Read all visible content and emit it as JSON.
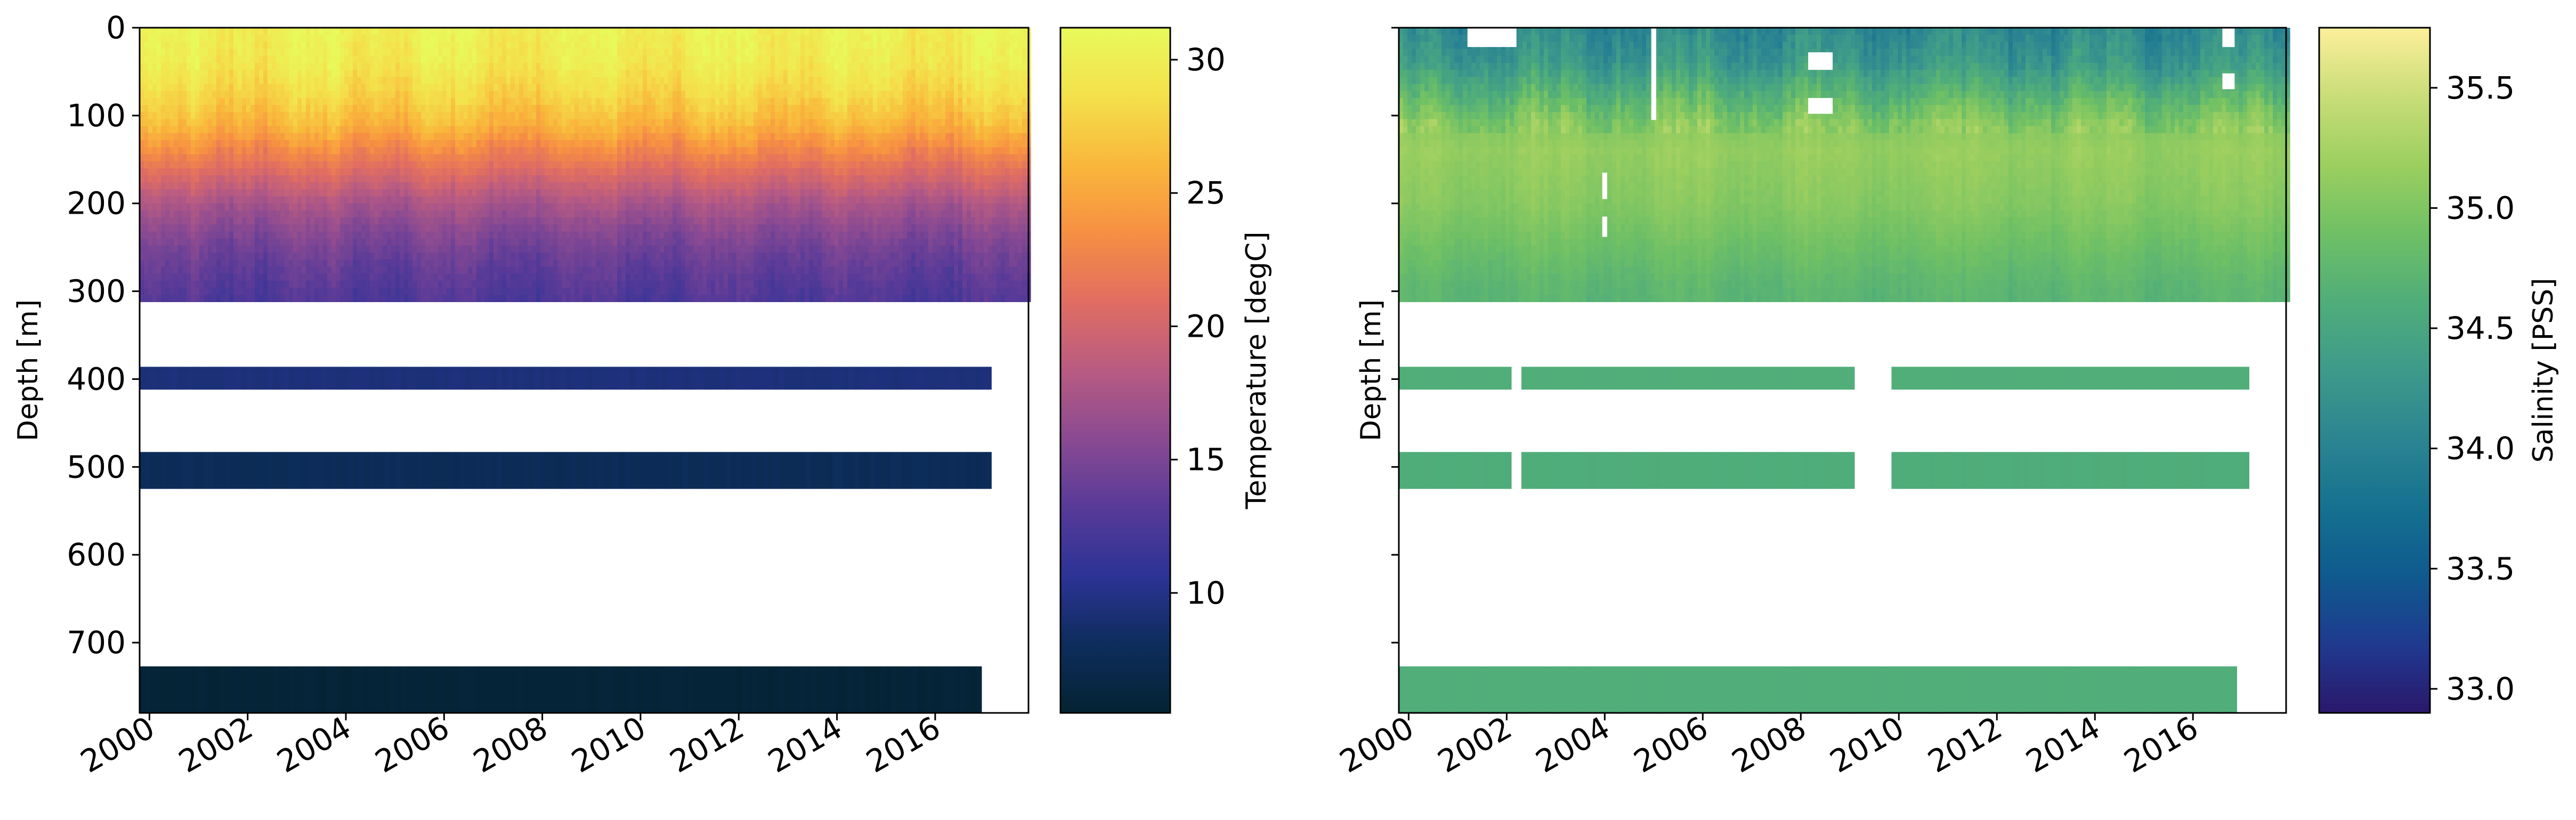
{
  "chart_data": [
    {
      "type": "heatmap",
      "panel": "left",
      "title": "",
      "xlabel": "",
      "ylabel": "Depth [m]",
      "xlim": [
        1999.8,
        2017.9
      ],
      "ylim": [
        780,
        0
      ],
      "x_ticks": [
        "2000",
        "2002",
        "2004",
        "2006",
        "2008",
        "2010",
        "2012",
        "2014",
        "2016"
      ],
      "x_tick_values": [
        2000,
        2002,
        2004,
        2006,
        2008,
        2010,
        2012,
        2014,
        2016
      ],
      "y_ticks": [
        "0",
        "100",
        "200",
        "300",
        "400",
        "500",
        "600",
        "700"
      ],
      "y_tick_values": [
        0,
        100,
        200,
        300,
        400,
        500,
        600,
        700
      ],
      "colorbar": {
        "label": "Temperature [degC]",
        "range": [
          5.5,
          31.2
        ],
        "ticks": [
          "10",
          "15",
          "20",
          "25",
          "30"
        ],
        "tick_values": [
          10,
          15,
          20,
          25,
          30
        ],
        "colormap": "thermal",
        "colors": [
          "#042333",
          "#0d2d5c",
          "#2c3395",
          "#583a98",
          "#8a4a92",
          "#b85b82",
          "#e06d62",
          "#f78f43",
          "#f9b73b",
          "#f4e04b",
          "#e8fa5b"
        ]
      },
      "profile": {
        "depth_m": [
          0,
          40,
          80,
          110,
          140,
          170,
          200,
          230,
          260,
          290,
          312
        ],
        "mean_temperature": [
          30.2,
          29.6,
          27.8,
          26.0,
          23.0,
          20.2,
          17.5,
          15.6,
          14.2,
          13.2,
          12.6
        ]
      },
      "bands": [
        {
          "depth_top": 0,
          "depth_bottom": 312,
          "x_start": 1999.8,
          "x_end": 2017.9,
          "temperature": "profile"
        },
        {
          "depth_top": 386,
          "depth_bottom": 412,
          "x_start": 1999.8,
          "x_end": 2017.15,
          "temperature": 9.4
        },
        {
          "depth_top": 483,
          "depth_bottom": 525,
          "x_start": 1999.8,
          "x_end": 2017.15,
          "temperature": 7.8
        },
        {
          "depth_top": 727,
          "depth_bottom": 780,
          "x_start": 1999.8,
          "x_end": 2016.95,
          "temperature": 5.8
        }
      ]
    },
    {
      "type": "heatmap",
      "panel": "right",
      "title": "",
      "xlabel": "",
      "ylabel": "Depth [m]",
      "xlim": [
        1999.8,
        2017.9
      ],
      "ylim": [
        780,
        0
      ],
      "x_ticks": [
        "2000",
        "2002",
        "2004",
        "2006",
        "2008",
        "2010",
        "2012",
        "2014",
        "2016"
      ],
      "x_tick_values": [
        2000,
        2002,
        2004,
        2006,
        2008,
        2010,
        2012,
        2014,
        2016
      ],
      "y_ticks": [],
      "y_tick_values": [
        0,
        100,
        200,
        300,
        400,
        500,
        600,
        700
      ],
      "colorbar": {
        "label": "Salinity [PSS]",
        "range": [
          32.9,
          35.75
        ],
        "ticks": [
          "33.0",
          "33.5",
          "34.0",
          "34.5",
          "35.0",
          "35.5"
        ],
        "tick_values": [
          33.0,
          33.5,
          34.0,
          34.5,
          35.0,
          35.5
        ],
        "colormap": "haline",
        "colors": [
          "#2a186c",
          "#1f3a8f",
          "#0f5a8e",
          "#157190",
          "#2b8591",
          "#3e9a8a",
          "#50ad7a",
          "#6fc065",
          "#9ccf5f",
          "#c9dd78",
          "#fdef9a"
        ]
      },
      "profile": {
        "depth_m": [
          0,
          40,
          80,
          110,
          140,
          170,
          200,
          230,
          260,
          290,
          312
        ],
        "mean_salinity": [
          34.1,
          34.3,
          34.75,
          35.05,
          35.15,
          35.1,
          35.05,
          34.95,
          34.85,
          34.75,
          34.72
        ]
      },
      "bands": [
        {
          "depth_top": 0,
          "depth_bottom": 312,
          "x_start": 1999.8,
          "x_end": 2017.9,
          "salinity": "profile"
        },
        {
          "depth_top": 386,
          "depth_bottom": 412,
          "segments": [
            [
              1999.8,
              2002.1
            ],
            [
              2002.3,
              2009.1
            ],
            [
              2009.85,
              2017.15
            ]
          ],
          "salinity": 34.62
        },
        {
          "depth_top": 483,
          "depth_bottom": 525,
          "segments": [
            [
              1999.8,
              2002.1
            ],
            [
              2002.3,
              2009.1
            ],
            [
              2009.85,
              2017.15
            ]
          ],
          "salinity": 34.6
        },
        {
          "depth_top": 727,
          "depth_bottom": 780,
          "segments": [
            [
              1999.8,
              2016.9
            ]
          ],
          "salinity": 34.62
        }
      ],
      "gaps": [
        {
          "x_start": 2001.2,
          "x_end": 2002.2,
          "depth_top": 0,
          "depth_bottom": 22
        },
        {
          "x_start": 2004.95,
          "x_end": 2005.05,
          "depth_top": 0,
          "depth_bottom": 105
        },
        {
          "x_start": 2008.15,
          "x_end": 2008.65,
          "depth_top": 28,
          "depth_bottom": 48
        },
        {
          "x_start": 2008.15,
          "x_end": 2008.65,
          "depth_top": 80,
          "depth_bottom": 98
        },
        {
          "x_start": 2003.95,
          "x_end": 2004.05,
          "depth_top": 165,
          "depth_bottom": 195
        },
        {
          "x_start": 2003.95,
          "x_end": 2004.05,
          "depth_top": 215,
          "depth_bottom": 238
        },
        {
          "x_start": 2016.6,
          "x_end": 2016.85,
          "depth_top": 0,
          "depth_bottom": 22
        },
        {
          "x_start": 2016.6,
          "x_end": 2016.85,
          "depth_top": 52,
          "depth_bottom": 70
        }
      ]
    }
  ]
}
